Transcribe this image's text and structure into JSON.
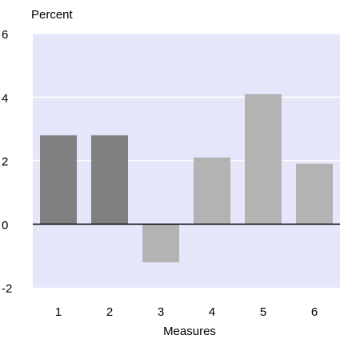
{
  "chart_data": {
    "type": "bar",
    "ylabel": "Percent",
    "xlabel": "Measures",
    "categories": [
      "1",
      "2",
      "3",
      "4",
      "5",
      "6"
    ],
    "values": [
      2.8,
      2.8,
      -1.2,
      2.1,
      4.1,
      1.9
    ],
    "bar_colors": [
      "#808080",
      "#808080",
      "#b3b3b3",
      "#b3b3b3",
      "#b3b3b3",
      "#b3b3b3"
    ],
    "ylim": [
      -2,
      6
    ],
    "yticks": [
      "-2",
      "0",
      "2",
      "4",
      "6"
    ],
    "grid": true,
    "plot_background": "#e6e6fa",
    "legend": null
  }
}
